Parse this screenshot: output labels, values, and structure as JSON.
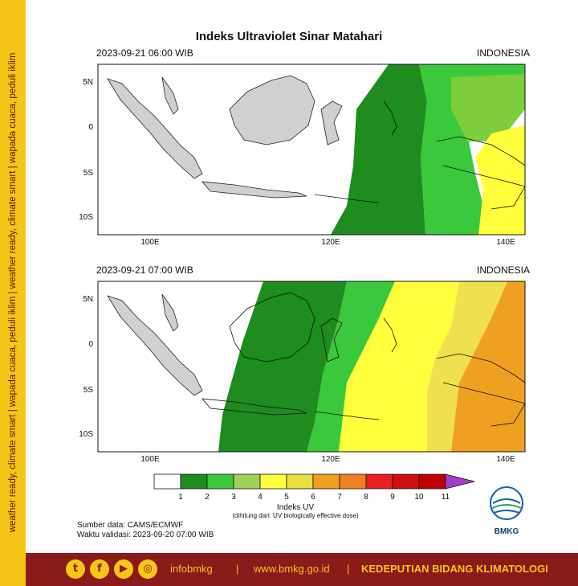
{
  "title": "Indeks Ultraviolet Sinar Matahari",
  "side_text": "weather ready, climate smart  |  wapada cuaca, peduli iklim  |  weather ready, climate smart  |  wapada cuaca, peduli iklim",
  "panels": [
    {
      "date": "2023-09-21  06:00 WIB",
      "region": "INDONESIA"
    },
    {
      "date": "2023-09-21  07:00 WIB",
      "region": "INDONESIA"
    }
  ],
  "axes": {
    "lat_labels": [
      "5N",
      "0",
      "5S",
      "10S"
    ],
    "lon_labels": [
      "100E",
      "120E",
      "140E"
    ]
  },
  "legend": {
    "title": "Indeks UV",
    "subtitle": "(dihitung dari: UV biologically effective dose)",
    "ticks": [
      "1",
      "2",
      "3",
      "4",
      "5",
      "6",
      "7",
      "8",
      "9",
      "10",
      "11"
    ],
    "colors": [
      "#ffffff",
      "#1e8c1e",
      "#3cc83c",
      "#a0d25a",
      "#ffff3c",
      "#e8e03c",
      "#f0a020",
      "#f08020",
      "#e82020",
      "#d01010",
      "#c00000",
      "#a040c8"
    ]
  },
  "source": {
    "line1": "Sumber data: CAMS/ECMWF",
    "line2": "Waktu validasi: 2023-09-20 07:00 WIB"
  },
  "logo_text": "BMKG",
  "footer": {
    "handle": "infobmkg",
    "sep": "|",
    "website": "www.bmkg.go.id",
    "org": "KEDEPUTIAN BIDANG KLIMATOLOGI"
  },
  "social_icons": [
    "twitter-icon",
    "facebook-icon",
    "youtube-icon",
    "instagram-icon"
  ]
}
